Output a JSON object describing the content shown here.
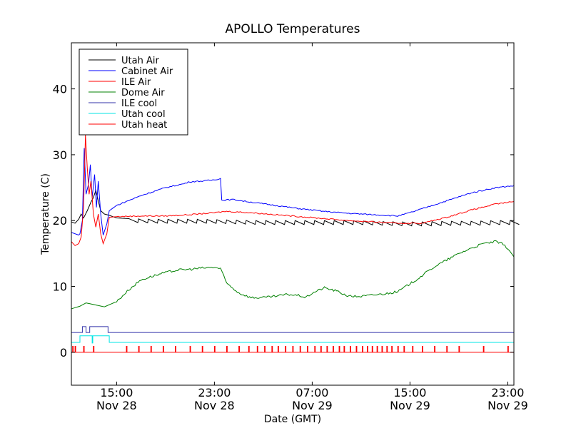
{
  "chart_data": {
    "type": "line",
    "title": "APOLLO Temperatures",
    "xlabel": "Date (GMT)",
    "ylabel": "Temperature (C)",
    "xlim": [
      11.3,
      47.5
    ],
    "ylim": [
      -5,
      47
    ],
    "x_units": "hours since Nov 28 00:00 GMT",
    "x_ticks": [
      {
        "x": 15,
        "line1": "15:00",
        "line2": "Nov 28"
      },
      {
        "x": 23,
        "line1": "23:00",
        "line2": "Nov 28"
      },
      {
        "x": 31,
        "line1": "07:00",
        "line2": "Nov 29"
      },
      {
        "x": 39,
        "line1": "15:00",
        "line2": "Nov 29"
      },
      {
        "x": 47,
        "line1": "23:00",
        "line2": "Nov 29"
      }
    ],
    "y_ticks": [
      0,
      10,
      20,
      30,
      40
    ],
    "legend_position": "top-left",
    "series": [
      {
        "name": "Utah Air",
        "color": "#000000",
        "points": [
          [
            11.3,
            19.8
          ],
          [
            11.6,
            19.6
          ],
          [
            11.9,
            20.2
          ],
          [
            12.1,
            21.0
          ],
          [
            12.3,
            20.4
          ],
          [
            12.6,
            21.5
          ],
          [
            12.9,
            22.8
          ],
          [
            13.1,
            23.5
          ],
          [
            13.3,
            24.6
          ],
          [
            13.5,
            23.0
          ],
          [
            13.7,
            21.5
          ],
          [
            14.0,
            21.0
          ],
          [
            14.4,
            20.8
          ],
          [
            15.0,
            20.4
          ],
          [
            16.0,
            20.0
          ],
          [
            18.0,
            19.9
          ],
          [
            20.0,
            19.9
          ],
          [
            22.0,
            19.9
          ],
          [
            24.0,
            19.8
          ],
          [
            26.0,
            19.7
          ],
          [
            28.0,
            19.7
          ],
          [
            30.0,
            19.7
          ],
          [
            32.0,
            19.7
          ],
          [
            34.0,
            19.7
          ],
          [
            36.0,
            19.6
          ],
          [
            38.0,
            19.5
          ],
          [
            40.0,
            19.5
          ],
          [
            42.0,
            19.6
          ],
          [
            44.0,
            19.6
          ],
          [
            46.0,
            19.7
          ],
          [
            47.5,
            19.7
          ]
        ],
        "cycling": {
          "start": 16.0,
          "end": 47.5,
          "period_hours": 0.8,
          "amplitude": 0.6
        }
      },
      {
        "name": "Cabinet Air",
        "color": "#0000ff",
        "points": [
          [
            11.3,
            18.2
          ],
          [
            11.6,
            18.0
          ],
          [
            11.9,
            17.8
          ],
          [
            12.0,
            18.0
          ],
          [
            12.2,
            20.0
          ],
          [
            12.35,
            31.0
          ],
          [
            12.5,
            24.0
          ],
          [
            12.7,
            25.5
          ],
          [
            12.85,
            28.5
          ],
          [
            13.0,
            23.5
          ],
          [
            13.2,
            27.0
          ],
          [
            13.35,
            22.0
          ],
          [
            13.5,
            26.0
          ],
          [
            13.7,
            21.0
          ],
          [
            13.9,
            17.8
          ],
          [
            14.2,
            19.5
          ],
          [
            14.4,
            21.5
          ],
          [
            15.0,
            22.3
          ],
          [
            17.0,
            23.8
          ],
          [
            19.0,
            25.0
          ],
          [
            20.5,
            25.6
          ],
          [
            21.0,
            25.9
          ],
          [
            22.0,
            26.0
          ],
          [
            23.0,
            26.2
          ],
          [
            23.5,
            26.4
          ],
          [
            23.6,
            23.1
          ],
          [
            24.5,
            23.2
          ],
          [
            26.0,
            22.8
          ],
          [
            28.0,
            22.3
          ],
          [
            30.0,
            21.8
          ],
          [
            32.0,
            21.4
          ],
          [
            34.0,
            21.1
          ],
          [
            36.0,
            20.9
          ],
          [
            38.0,
            20.7
          ],
          [
            39.0,
            21.2
          ],
          [
            40.0,
            21.8
          ],
          [
            42.0,
            23.0
          ],
          [
            44.0,
            24.2
          ],
          [
            46.0,
            25.0
          ],
          [
            47.5,
            25.3
          ]
        ]
      },
      {
        "name": "ILE Air",
        "color": "#ff0000",
        "points": [
          [
            11.3,
            16.8
          ],
          [
            11.6,
            16.2
          ],
          [
            11.9,
            16.5
          ],
          [
            12.1,
            17.5
          ],
          [
            12.3,
            22.0
          ],
          [
            12.45,
            33.0
          ],
          [
            12.6,
            28.0
          ],
          [
            12.75,
            24.0
          ],
          [
            12.9,
            26.0
          ],
          [
            13.1,
            21.0
          ],
          [
            13.3,
            19.0
          ],
          [
            13.5,
            21.0
          ],
          [
            13.7,
            18.0
          ],
          [
            13.9,
            16.5
          ],
          [
            14.2,
            18.0
          ],
          [
            14.4,
            20.5
          ],
          [
            15.0,
            20.6
          ],
          [
            17.0,
            20.7
          ],
          [
            19.0,
            20.7
          ],
          [
            21.0,
            20.9
          ],
          [
            23.0,
            21.2
          ],
          [
            24.0,
            21.4
          ],
          [
            26.0,
            21.2
          ],
          [
            28.0,
            20.9
          ],
          [
            30.0,
            20.6
          ],
          [
            32.0,
            20.3
          ],
          [
            34.0,
            20.0
          ],
          [
            36.0,
            19.8
          ],
          [
            38.0,
            19.6
          ],
          [
            40.0,
            19.6
          ],
          [
            42.0,
            20.5
          ],
          [
            44.0,
            21.6
          ],
          [
            46.0,
            22.5
          ],
          [
            47.5,
            22.9
          ]
        ]
      },
      {
        "name": "Dome Air",
        "color": "#008000",
        "points": [
          [
            11.3,
            6.6
          ],
          [
            12.0,
            7.0
          ],
          [
            12.5,
            7.5
          ],
          [
            13.0,
            7.3
          ],
          [
            14.0,
            6.9
          ],
          [
            15.0,
            7.7
          ],
          [
            16.0,
            9.5
          ],
          [
            17.0,
            11.0
          ],
          [
            18.0,
            11.6
          ],
          [
            19.0,
            12.1
          ],
          [
            20.0,
            12.5
          ],
          [
            21.0,
            12.6
          ],
          [
            22.0,
            12.8
          ],
          [
            23.0,
            12.9
          ],
          [
            23.5,
            12.7
          ],
          [
            24.0,
            10.5
          ],
          [
            25.0,
            9.0
          ],
          [
            26.0,
            8.3
          ],
          [
            27.0,
            8.3
          ],
          [
            28.0,
            8.5
          ],
          [
            29.0,
            8.8
          ],
          [
            30.0,
            8.6
          ],
          [
            30.5,
            8.3
          ],
          [
            31.0,
            9.0
          ],
          [
            32.0,
            9.8
          ],
          [
            33.0,
            9.3
          ],
          [
            34.0,
            8.5
          ],
          [
            35.0,
            8.5
          ],
          [
            36.0,
            8.7
          ],
          [
            37.0,
            8.9
          ],
          [
            38.0,
            9.2
          ],
          [
            38.5,
            9.8
          ],
          [
            39.5,
            11.0
          ],
          [
            41.0,
            13.0
          ],
          [
            42.0,
            14.0
          ],
          [
            43.0,
            15.0
          ],
          [
            44.0,
            15.8
          ],
          [
            45.0,
            16.5
          ],
          [
            46.0,
            16.8
          ],
          [
            46.5,
            16.5
          ],
          [
            47.0,
            15.8
          ],
          [
            47.5,
            14.5
          ]
        ]
      },
      {
        "name": "ILE cool",
        "color": "#3333aa",
        "points": [
          [
            11.3,
            3.0
          ],
          [
            12.0,
            3.0
          ],
          [
            12.2,
            3.0
          ],
          [
            12.2,
            3.9
          ],
          [
            12.5,
            3.9
          ],
          [
            12.5,
            3.0
          ],
          [
            12.8,
            3.0
          ],
          [
            12.8,
            3.9
          ],
          [
            14.3,
            3.9
          ],
          [
            14.3,
            3.0
          ],
          [
            47.5,
            3.0
          ]
        ]
      },
      {
        "name": "Utah cool",
        "color": "#00e5e5",
        "points": [
          [
            11.3,
            1.5
          ],
          [
            12.0,
            1.5
          ],
          [
            12.0,
            2.5
          ],
          [
            13.0,
            2.5
          ],
          [
            13.0,
            1.4
          ],
          [
            13.05,
            1.4
          ],
          [
            13.05,
            2.5
          ],
          [
            14.4,
            2.5
          ],
          [
            14.4,
            1.5
          ],
          [
            47.5,
            1.5
          ]
        ]
      },
      {
        "name": "Utah heat",
        "color": "#ff0000",
        "points": [
          [
            11.3,
            0.0
          ],
          [
            47.5,
            0.0
          ]
        ],
        "pulses": {
          "height": 0.9,
          "width_hours": 0.05,
          "at": [
            11.4,
            11.6,
            12.3,
            13.1,
            15.8,
            16.8,
            17.8,
            18.8,
            19.8,
            21.0,
            22.0,
            23.0,
            24.0,
            25.0,
            25.8,
            26.5,
            27.1,
            27.7,
            28.2,
            28.8,
            29.4,
            30.0,
            30.6,
            31.2,
            31.7,
            32.2,
            32.7,
            33.2,
            33.6,
            34.1,
            34.6,
            35.1,
            35.5,
            35.9,
            36.3,
            36.7,
            37.1,
            37.5,
            38.0,
            38.5,
            39.2,
            40.0,
            41.0,
            42.0,
            43.0,
            45.0,
            47.0
          ]
        }
      }
    ]
  }
}
